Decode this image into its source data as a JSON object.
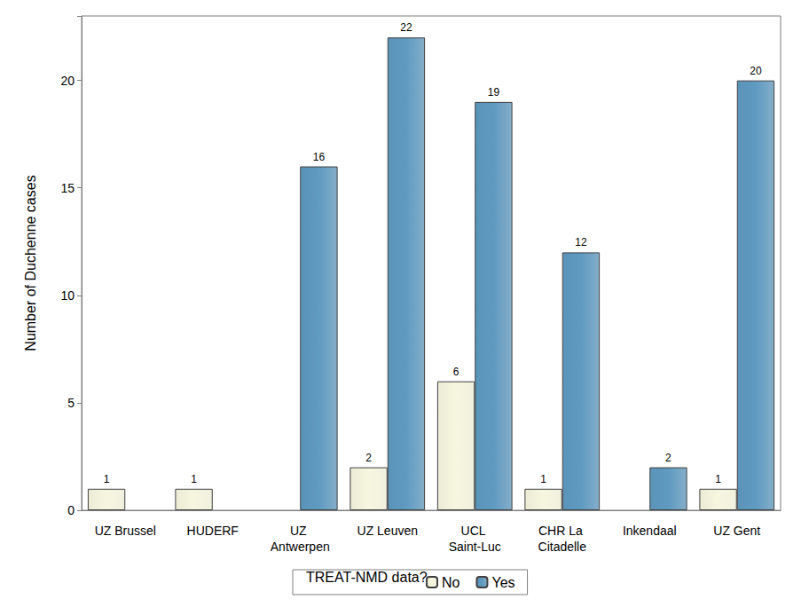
{
  "chart_data": {
    "type": "bar",
    "y_label": "Number of Duchenne cases",
    "legend_title": "TREAT-NMD data?",
    "categories": [
      "UZ Brussel",
      "HUDERF",
      "UZ Antwerpen",
      "UZ Leuven",
      "UCL Saint-Luc",
      "CHR La Citadelle",
      "Inkendaal",
      "UZ Gent"
    ],
    "series": [
      {
        "name": "No",
        "color": "#ecebd5",
        "values": [
          1,
          1,
          null,
          2,
          6,
          1,
          null,
          1
        ]
      },
      {
        "name": "Yes",
        "color": "#5b93b8",
        "values": [
          null,
          null,
          16,
          22,
          19,
          12,
          2,
          20
        ]
      }
    ],
    "ylim": [
      0,
      23
    ],
    "yticks": [
      0,
      5,
      10,
      15,
      20
    ],
    "grid": false,
    "legend": "bottom",
    "data_labels": true
  }
}
